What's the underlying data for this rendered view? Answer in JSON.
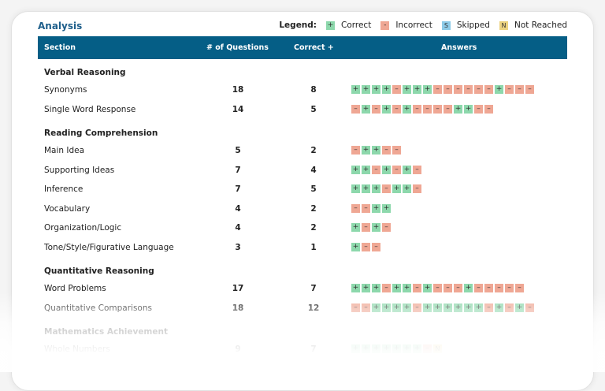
{
  "title": "Analysis",
  "legend": {
    "label": "Legend:",
    "items": [
      {
        "symbol": "+",
        "label": "Correct",
        "color": "#8dd8ac",
        "cls": "c"
      },
      {
        "symbol": "-",
        "label": "Incorrect",
        "color": "#efa794",
        "cls": "i"
      },
      {
        "symbol": "S",
        "label": "Skipped",
        "color": "#8ecbe8",
        "cls": "s"
      },
      {
        "symbol": "N",
        "label": "Not Reached",
        "color": "#ecd27f",
        "cls": "n"
      }
    ]
  },
  "header": {
    "section": "Section",
    "questions": "# of Questions",
    "correct": "Correct +",
    "answers": "Answers",
    "color": "#055e86"
  },
  "sections": [
    {
      "name": "Verbal Reasoning",
      "rows": [
        {
          "name": "Synonyms",
          "questions": "18",
          "correct": "8",
          "answers": "++++-+++------+---"
        },
        {
          "name": "Single Word Response",
          "questions": "14",
          "correct": "5",
          "answers": "-+-+-+----++--"
        }
      ]
    },
    {
      "name": "Reading Comprehension",
      "rows": [
        {
          "name": "Main Idea",
          "questions": "5",
          "correct": "2",
          "answers": "-++--"
        },
        {
          "name": "Supporting Ideas",
          "questions": "7",
          "correct": "4",
          "answers": "++-+-+-"
        },
        {
          "name": "Inference",
          "questions": "7",
          "correct": "5",
          "answers": "+++-++-"
        },
        {
          "name": "Vocabulary",
          "questions": "4",
          "correct": "2",
          "answers": "--++"
        },
        {
          "name": "Organization/Logic",
          "questions": "4",
          "correct": "2",
          "answers": "+-+-"
        },
        {
          "name": "Tone/Style/Figurative Language",
          "questions": "3",
          "correct": "1",
          "answers": "+--"
        }
      ]
    },
    {
      "name": "Quantitative Reasoning",
      "rows": [
        {
          "name": "Word Problems",
          "questions": "17",
          "correct": "7",
          "answers": "+++-++-+---+-----"
        },
        {
          "name": "Quantitative Comparisons",
          "questions": "18",
          "correct": "12",
          "answers": "--++++-++++++-+-+-"
        }
      ]
    },
    {
      "name": "Mathematics Achievement",
      "rows": [
        {
          "name": "Whole Numbers",
          "questions": "9",
          "correct": "7",
          "answers": "+++++++-N"
        }
      ]
    }
  ]
}
